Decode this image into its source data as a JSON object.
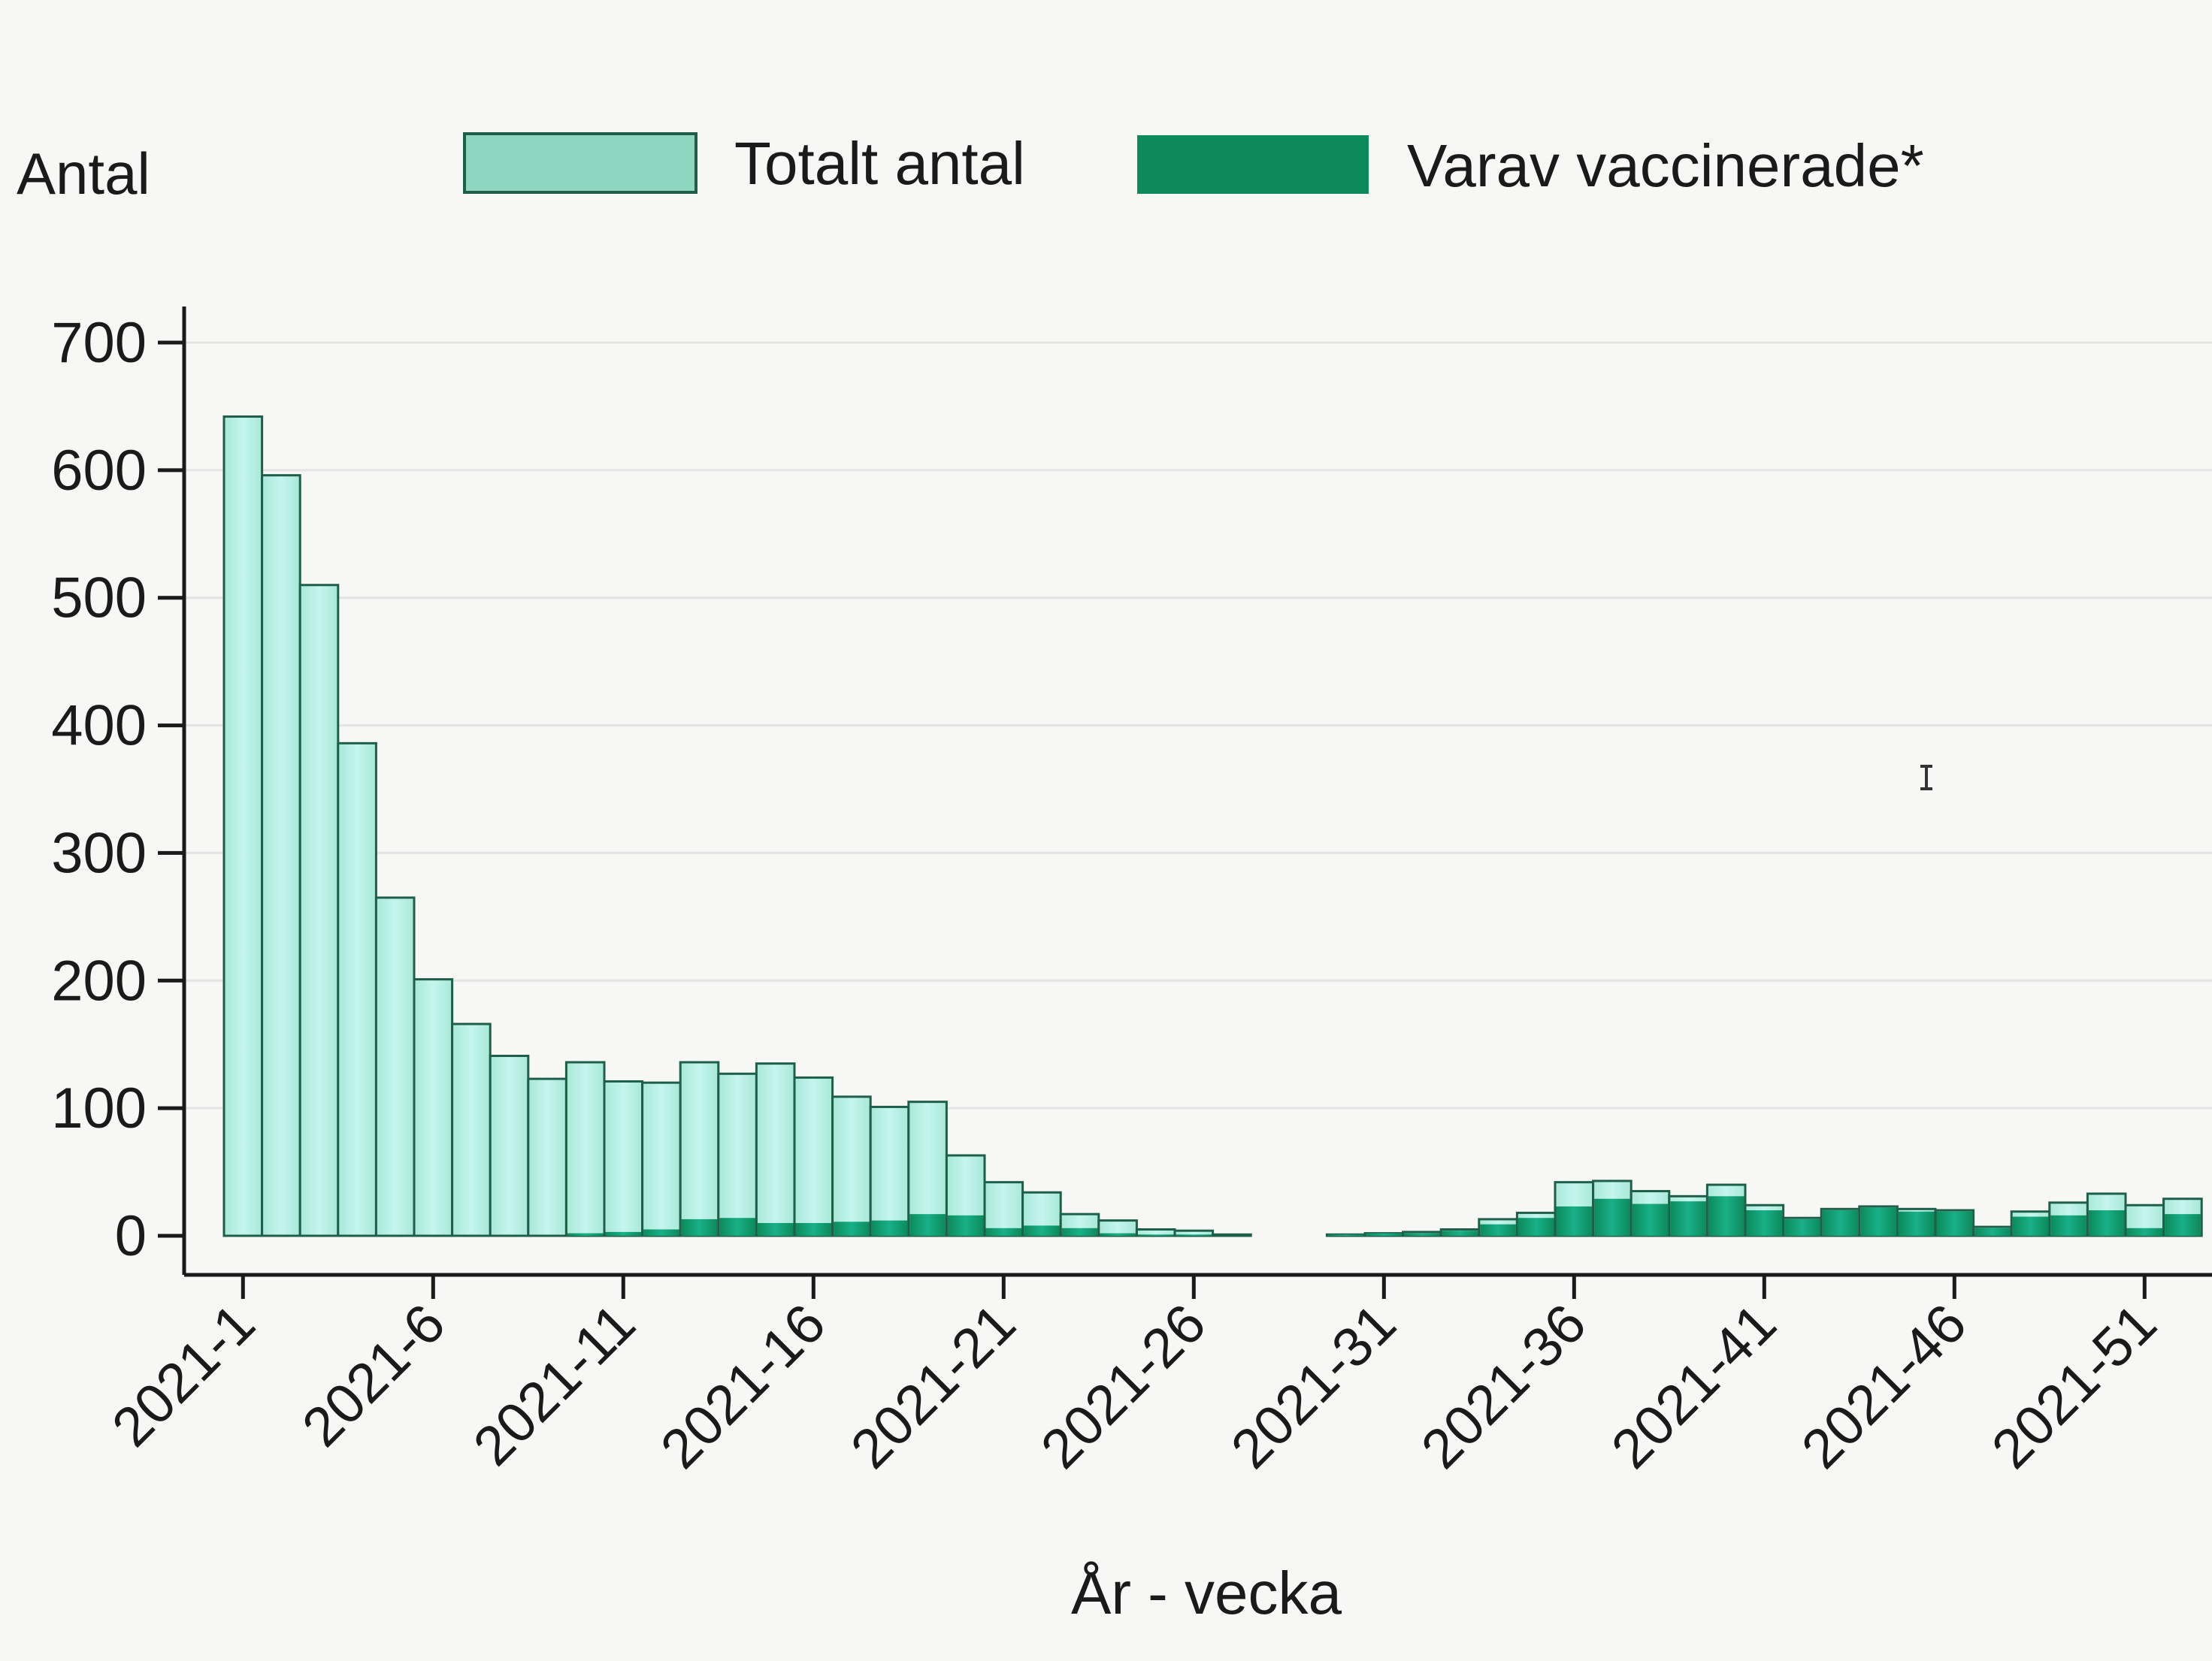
{
  "colors": {
    "background": "#f7f7f5",
    "total_fill": "#a9e8d8",
    "total_fill_light": "#c4f5ee",
    "total_stroke": "#1f5f4a",
    "vaccinated_fill": "#0c8a5c",
    "vaccinated_fill_light": "#19b088",
    "grid": "#e4e4e4",
    "axis": "#1a1a1a",
    "cursor": "#333333"
  },
  "chart_data": {
    "type": "bar",
    "xlabel": "År - vecka",
    "ylabel": "Antal",
    "ylim": [
      0,
      700
    ],
    "yticks": [
      0,
      100,
      200,
      300,
      400,
      500,
      600,
      700
    ],
    "grid": true,
    "legend_position": "top",
    "categories": [
      "2021-1",
      "2021-2",
      "2021-3",
      "2021-4",
      "2021-5",
      "2021-6",
      "2021-7",
      "2021-8",
      "2021-9",
      "2021-10",
      "2021-11",
      "2021-12",
      "2021-13",
      "2021-14",
      "2021-15",
      "2021-16",
      "2021-17",
      "2021-18",
      "2021-19",
      "2021-20",
      "2021-21",
      "2021-22",
      "2021-23",
      "2021-24",
      "2021-25",
      "2021-26",
      "2021-27",
      "2021-28",
      "2021-29",
      "2021-30",
      "2021-31",
      "2021-32",
      "2021-33",
      "2021-34",
      "2021-35",
      "2021-36",
      "2021-37",
      "2021-38",
      "2021-39",
      "2021-40",
      "2021-41",
      "2021-42",
      "2021-43",
      "2021-44",
      "2021-45",
      "2021-46",
      "2021-47",
      "2021-48",
      "2021-49",
      "2021-50",
      "2021-51",
      "2021-52"
    ],
    "xtick_labels": [
      "2021-1",
      "2021-6",
      "2021-11",
      "2021-16",
      "2021-21",
      "2021-26",
      "2021-31",
      "2021-36",
      "2021-41",
      "2021-46",
      "2021-51"
    ],
    "series": [
      {
        "name": "Totalt antal",
        "values": [
          642,
          596,
          510,
          386,
          265,
          201,
          166,
          141,
          123,
          136,
          121,
          120,
          136,
          127,
          135,
          124,
          109,
          101,
          105,
          63,
          42,
          34,
          17,
          12,
          5,
          4,
          1,
          0,
          0,
          1,
          2,
          3,
          5,
          13,
          18,
          42,
          43,
          35,
          31,
          40,
          24,
          14,
          21,
          23,
          21,
          20,
          7,
          19,
          26,
          33,
          24,
          29
        ]
      },
      {
        "name": "Varav vaccinerade*",
        "values": [
          0,
          0,
          0,
          0,
          0,
          0,
          0,
          0,
          0,
          2,
          3,
          5,
          13,
          14,
          10,
          10,
          11,
          12,
          17,
          16,
          6,
          8,
          6,
          2,
          1,
          1,
          0,
          0,
          0,
          1,
          2,
          2,
          4,
          9,
          14,
          23,
          29,
          25,
          27,
          31,
          20,
          13,
          20,
          22,
          19,
          19,
          6,
          15,
          16,
          20,
          6,
          17
        ]
      }
    ]
  },
  "legend": {
    "total_label": "Totalt antal",
    "vaccinated_label": "Varav vaccinerade*"
  }
}
